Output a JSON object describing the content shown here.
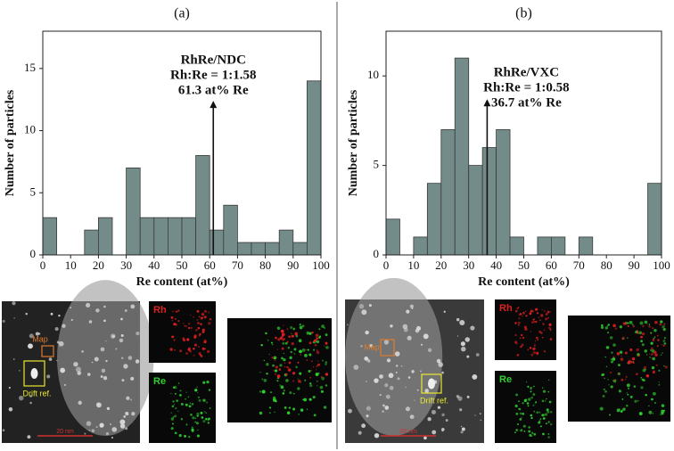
{
  "chart_data": [
    {
      "type": "histogram",
      "title": "(a)",
      "xlabel": "Re content (at%)",
      "ylabel": "Number of particles",
      "bins": [
        0,
        5,
        10,
        15,
        20,
        25,
        30,
        35,
        40,
        45,
        50,
        55,
        60,
        65,
        70,
        75,
        80,
        85,
        90,
        95,
        100
      ],
      "values": [
        3,
        0,
        0,
        2,
        3,
        0,
        7,
        3,
        3,
        3,
        3,
        8,
        2,
        4,
        1,
        1,
        1,
        2,
        1,
        14
      ],
      "color": "#738c89",
      "xlim": [
        0,
        100
      ],
      "xticks": [
        0,
        10,
        20,
        30,
        40,
        50,
        60,
        70,
        80,
        90,
        100
      ],
      "ylim": [
        0,
        18
      ],
      "yticks": [
        0,
        5,
        10,
        15
      ],
      "annotation": {
        "lines": [
          "RhRe/NDC",
          "Rh:Re = 1:1.58",
          "61.3 at% Re"
        ],
        "x": 61.3,
        "y": 12.4
      }
    },
    {
      "type": "histogram",
      "title": "(b)",
      "xlabel": "Re content (at%)",
      "ylabel": "Number of particles",
      "bins": [
        0,
        5,
        10,
        15,
        20,
        25,
        30,
        35,
        40,
        45,
        50,
        55,
        60,
        65,
        70,
        75,
        80,
        85,
        90,
        95,
        100
      ],
      "values": [
        2,
        0,
        1,
        4,
        7,
        11,
        5,
        6,
        7,
        1,
        0,
        1,
        1,
        0,
        1,
        0,
        0,
        0,
        0,
        4
      ],
      "color": "#738c89",
      "xlim": [
        0,
        100
      ],
      "xticks": [
        0,
        10,
        20,
        30,
        40,
        50,
        60,
        70,
        80,
        90,
        100
      ],
      "ylim": [
        0,
        12.5
      ],
      "yticks": [
        0,
        5,
        10
      ],
      "annotation": {
        "lines": [
          "RhRe/VXC",
          "Rh:Re = 1:0.58",
          "36.7 at% Re"
        ],
        "x": 36.7,
        "y": 8.7
      }
    }
  ],
  "micrographs": [
    {
      "map_label": "Map",
      "drift_label": "Drift ref.",
      "scale_bar": "20 nm",
      "rh_label": "Rh",
      "re_label": "Re"
    },
    {
      "map_label": "Map",
      "drift_label": "Drift ref.",
      "scale_bar": "20 nm",
      "rh_label": "Rh",
      "re_label": "Re"
    }
  ]
}
